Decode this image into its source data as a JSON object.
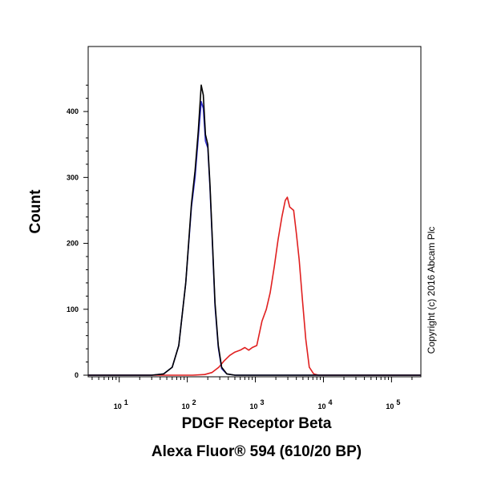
{
  "chart_data": {
    "type": "line",
    "xlabel_line1": "PDGF Receptor Beta",
    "xlabel_line2": "Alexa Fluor® 594 (610/20 BP)",
    "ylabel": "Count",
    "x_scale": "log",
    "xlim": [
      3.5,
      270000
    ],
    "ylim": [
      0,
      450
    ],
    "y_ticks": [
      0,
      100,
      200,
      300,
      400
    ],
    "x_ticks": [
      10,
      100,
      1000,
      10000,
      100000
    ],
    "x_tick_labels": [
      {
        "base": "10",
        "exp": "1"
      },
      {
        "base": "10",
        "exp": "2"
      },
      {
        "base": "10",
        "exp": "3"
      },
      {
        "base": "10",
        "exp": "4"
      },
      {
        "base": "10",
        "exp": "5"
      }
    ],
    "copyright": "Copyright (c) 2016 Abcam Plc",
    "series": [
      {
        "color": "#000000",
        "points": [
          [
            3.5,
            0
          ],
          [
            30,
            0
          ],
          [
            45,
            2
          ],
          [
            60,
            12
          ],
          [
            75,
            45
          ],
          [
            95,
            140
          ],
          [
            115,
            260
          ],
          [
            130,
            310
          ],
          [
            145,
            370
          ],
          [
            160,
            440
          ],
          [
            172,
            425
          ],
          [
            185,
            365
          ],
          [
            200,
            350
          ],
          [
            215,
            290
          ],
          [
            235,
            200
          ],
          [
            255,
            110
          ],
          [
            285,
            45
          ],
          [
            320,
            12
          ],
          [
            380,
            2
          ],
          [
            500,
            0
          ],
          [
            270000,
            0
          ]
        ]
      },
      {
        "color": "#2f2fd0",
        "points": [
          [
            3.5,
            0
          ],
          [
            30,
            0
          ],
          [
            45,
            2
          ],
          [
            60,
            12
          ],
          [
            75,
            45
          ],
          [
            95,
            140
          ],
          [
            115,
            255
          ],
          [
            130,
            300
          ],
          [
            145,
            360
          ],
          [
            160,
            415
          ],
          [
            172,
            405
          ],
          [
            185,
            355
          ],
          [
            200,
            345
          ],
          [
            215,
            285
          ],
          [
            235,
            195
          ],
          [
            255,
            105
          ],
          [
            285,
            42
          ],
          [
            320,
            10
          ],
          [
            380,
            2
          ],
          [
            500,
            0
          ],
          [
            270000,
            0
          ]
        ]
      },
      {
        "color": "#e02020",
        "points": [
          [
            3.5,
            0
          ],
          [
            120,
            0
          ],
          [
            180,
            1
          ],
          [
            230,
            4
          ],
          [
            290,
            12
          ],
          [
            350,
            22
          ],
          [
            420,
            30
          ],
          [
            500,
            35
          ],
          [
            600,
            38
          ],
          [
            700,
            42
          ],
          [
            800,
            38
          ],
          [
            900,
            42
          ],
          [
            1050,
            45
          ],
          [
            1250,
            82
          ],
          [
            1450,
            100
          ],
          [
            1650,
            125
          ],
          [
            1900,
            165
          ],
          [
            2150,
            205
          ],
          [
            2450,
            240
          ],
          [
            2750,
            265
          ],
          [
            2950,
            270
          ],
          [
            3200,
            255
          ],
          [
            3650,
            250
          ],
          [
            4000,
            215
          ],
          [
            4400,
            175
          ],
          [
            4900,
            115
          ],
          [
            5500,
            55
          ],
          [
            6200,
            12
          ],
          [
            7200,
            2
          ],
          [
            8500,
            0
          ],
          [
            270000,
            0
          ]
        ]
      }
    ]
  }
}
